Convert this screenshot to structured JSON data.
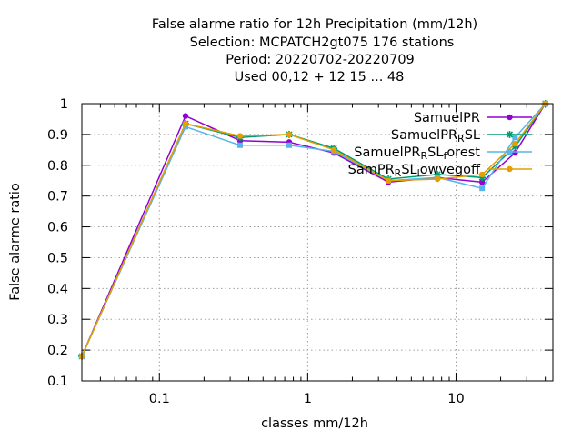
{
  "chart_data": {
    "type": "line",
    "title_lines": [
      "False alarme ratio  for 12h Precipitation (mm/12h)",
      "Selection: MCPATCH2gt075    176 stations",
      "Period: 20220702-20220709",
      "Used  00,12  + 12 15 ... 48"
    ],
    "xlabel": "classes mm/12h",
    "ylabel": "False alarme ratio",
    "xscale": "log",
    "xlim": [
      0.03,
      45
    ],
    "ylim": [
      0.1,
      1.0
    ],
    "xticks": [
      0.1,
      1,
      10
    ],
    "xtick_labels": [
      "0.1",
      "1",
      "10"
    ],
    "yticks": [
      0.1,
      0.2,
      0.3,
      0.4,
      0.5,
      0.6,
      0.7,
      0.8,
      0.9,
      1.0
    ],
    "ytick_labels": [
      "0.1",
      "0.2",
      "0.3",
      "0.4",
      "0.5",
      "0.6",
      "0.7",
      "0.8",
      "0.9",
      "1"
    ],
    "grid": true,
    "legend_position": "top-right",
    "x": [
      0.03,
      0.15,
      0.35,
      0.75,
      1.5,
      3.5,
      7.5,
      15,
      25,
      40
    ],
    "series": [
      {
        "name": "SamuelPR",
        "color": "#9400d3",
        "marker": "circle",
        "values": [
          0.18,
          0.96,
          0.88,
          0.875,
          0.84,
          0.745,
          0.76,
          0.745,
          0.84,
          1.0
        ]
      },
      {
        "name": "SamuelPR_R SL",
        "label_parts": [
          {
            "t": "SamuelPR",
            "sub": false
          },
          {
            "t": "R",
            "sub": true
          },
          {
            "t": "SL",
            "sub": false
          }
        ],
        "color": "#009e73",
        "marker": "star",
        "values": [
          0.18,
          0.935,
          0.89,
          0.9,
          0.855,
          0.755,
          0.77,
          0.76,
          0.86,
          1.0
        ]
      },
      {
        "name": "SamuelPR_R SL_forest",
        "label_parts": [
          {
            "t": "SamuelPR",
            "sub": false
          },
          {
            "t": "R",
            "sub": true
          },
          {
            "t": "SL",
            "sub": false
          },
          {
            "t": "f",
            "sub": true
          },
          {
            "t": "orest",
            "sub": false
          }
        ],
        "color": "#56b4e9",
        "marker": "square",
        "values": [
          0.18,
          0.925,
          0.865,
          0.865,
          0.845,
          0.75,
          0.76,
          0.725,
          0.89,
          1.0
        ]
      },
      {
        "name": "SamPR_R SL_lowvegoff",
        "label_parts": [
          {
            "t": "SamPR",
            "sub": false
          },
          {
            "t": "R",
            "sub": true
          },
          {
            "t": "SL",
            "sub": false
          },
          {
            "t": "l",
            "sub": true
          },
          {
            "t": "owvegoff",
            "sub": false
          }
        ],
        "color": "#e69f00",
        "marker": "circle",
        "values": [
          0.18,
          0.935,
          0.895,
          0.9,
          0.85,
          0.75,
          0.755,
          0.77,
          0.87,
          1.0
        ]
      }
    ]
  }
}
